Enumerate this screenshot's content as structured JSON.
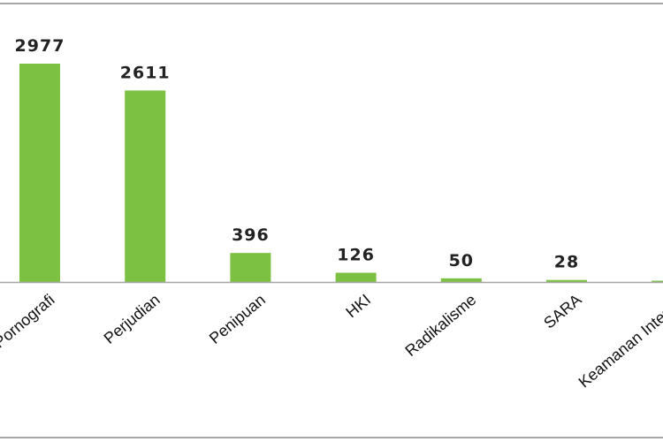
{
  "chart_data": {
    "type": "bar",
    "categories": [
      "Pornografi",
      "Perjudian",
      "Penipuan",
      "HKI",
      "Radikalisme",
      "SARA",
      "Keamanan Internet"
    ],
    "values": [
      2977,
      2611,
      396,
      126,
      50,
      28,
      15
    ],
    "data_labels": [
      "2977",
      "2611",
      "396",
      "126",
      "50",
      "28",
      ""
    ],
    "title": "",
    "xlabel": "",
    "ylabel": "",
    "ylim": [
      0,
      3000
    ],
    "grid": false,
    "legend": "none",
    "bar_color": "#7dc142",
    "axis_color": "#bfbfbf"
  }
}
